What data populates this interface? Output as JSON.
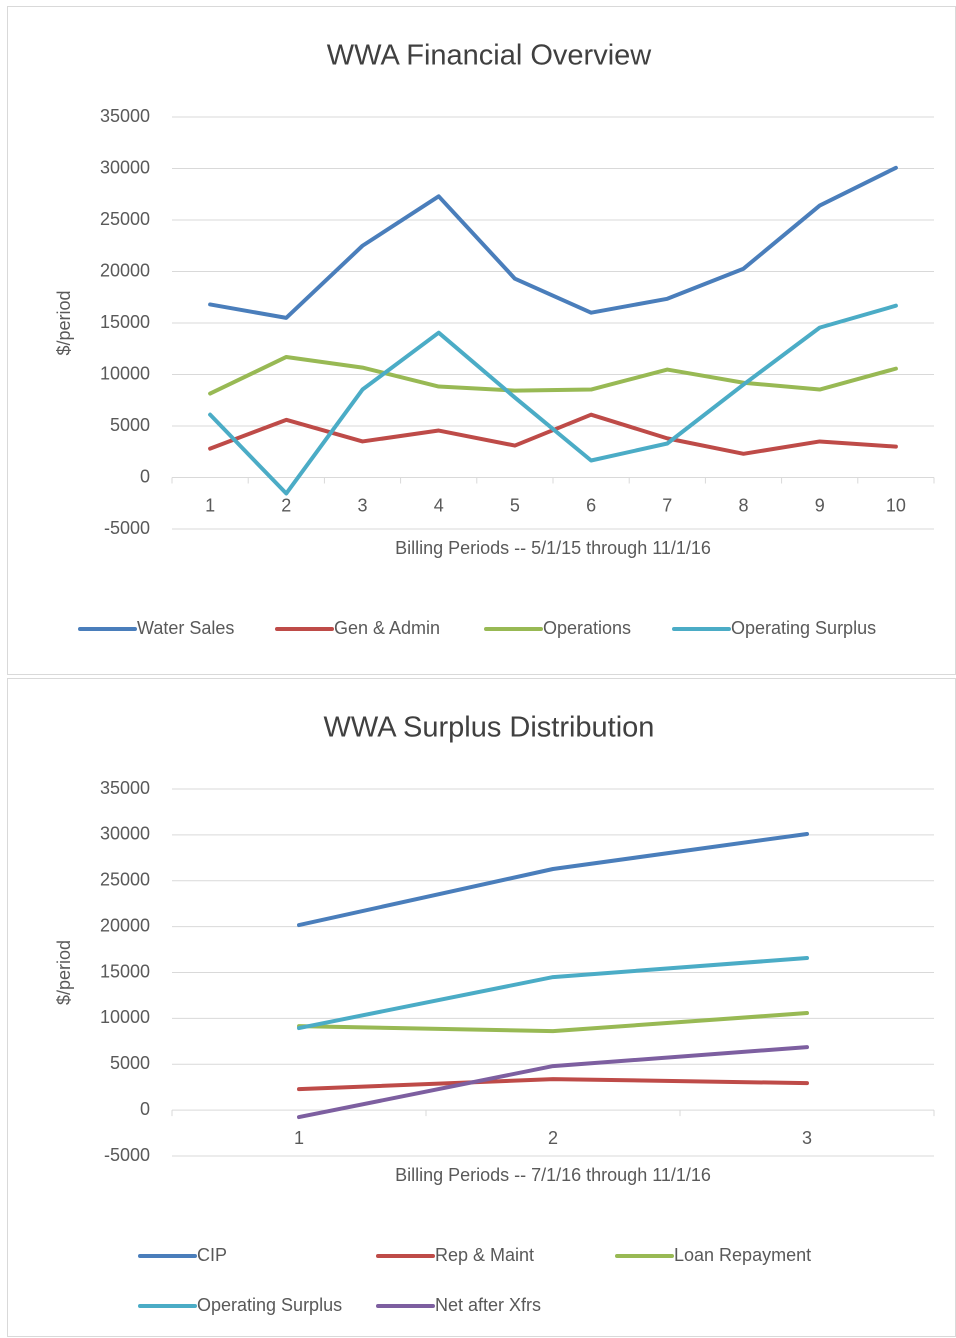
{
  "chart_data": [
    {
      "type": "line",
      "title": "WWA Financial Overview",
      "x_label": "Billing Periods -- 5/1/15 through 11/1/16",
      "y_label": "$/period",
      "categories": [
        "1",
        "2",
        "3",
        "4",
        "5",
        "6",
        "7",
        "8",
        "9",
        "10"
      ],
      "ylim": [
        -5000,
        35000
      ],
      "yticks": [
        -5000,
        0,
        5000,
        10000,
        15000,
        20000,
        25000,
        30000,
        35000
      ],
      "grid": true,
      "legend": "bottom",
      "series": [
        {
          "name": "Water Sales",
          "color": "#4a7ebb",
          "values": [
            16800,
            15500,
            22500,
            27300,
            19300,
            16000,
            17350,
            20270,
            26400,
            30070
          ]
        },
        {
          "name": "Gen & Admin",
          "color": "#be4b48",
          "values": [
            2800,
            5600,
            3500,
            4560,
            3100,
            6100,
            3800,
            2300,
            3500,
            3000
          ]
        },
        {
          "name": "Operations",
          "color": "#98b954",
          "values": [
            8150,
            11700,
            10670,
            8830,
            8440,
            8540,
            10480,
            9200,
            8540,
            10570
          ]
        },
        {
          "name": "Operating Surplus",
          "color": "#4bacc6",
          "values": [
            6100,
            -1550,
            8540,
            14060,
            7760,
            1650,
            3300,
            9020,
            14550,
            16680
          ]
        }
      ]
    },
    {
      "type": "line",
      "title": "WWA Surplus Distribution",
      "x_label": "Billing Periods -- 7/1/16 through 11/1/16",
      "y_label": "$/period",
      "categories": [
        "1",
        "2",
        "3"
      ],
      "ylim": [
        -5000,
        35000
      ],
      "yticks": [
        -5000,
        0,
        5000,
        10000,
        15000,
        20000,
        25000,
        30000,
        35000
      ],
      "grid": true,
      "legend": "bottom",
      "series": [
        {
          "name": "CIP",
          "color": "#4a7ebb",
          "values": [
            20170,
            26280,
            30100
          ]
        },
        {
          "name": "Rep & Maint",
          "color": "#be4b48",
          "values": [
            2290,
            3380,
            2940
          ]
        },
        {
          "name": "Loan Repayment",
          "color": "#98b954",
          "values": [
            9160,
            8610,
            10580
          ]
        },
        {
          "name": "Operating Surplus",
          "color": "#4bacc6",
          "values": [
            8940,
            14500,
            16580
          ]
        },
        {
          "name": "Net after Xfrs",
          "color": "#7d5fa0",
          "values": [
            -760,
            4800,
            6870
          ]
        }
      ]
    }
  ]
}
